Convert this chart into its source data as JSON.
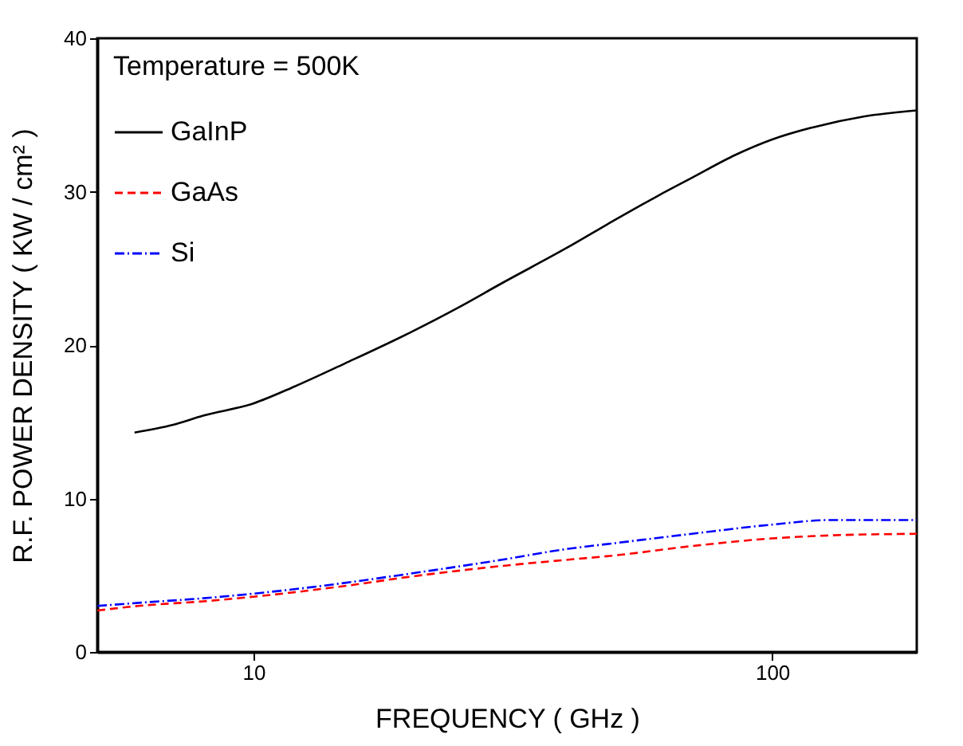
{
  "chart_data": {
    "type": "line",
    "xlabel": "FREQUENCY ( GHz )",
    "ylabel": "R.F.  POWER DENSITY ( KW / cm² )",
    "log": "x",
    "xlim": [
      5,
      190
    ],
    "xticks": [
      10,
      100
    ],
    "ylim": [
      0,
      40
    ],
    "yticks": [
      0,
      10,
      20,
      30,
      40
    ],
    "legend": "top left",
    "legend_title": "Temperature = 500K",
    "series": [
      {
        "name": "GaInP",
        "color": "#000000",
        "line_style": "solid",
        "x": [
          5.9,
          7,
          8,
          10,
          12,
          15,
          20,
          25,
          30,
          40,
          50,
          60,
          70,
          85,
          100,
          120,
          150,
          190
        ],
        "values": [
          14.3,
          14.8,
          15.4,
          16.2,
          17.3,
          18.8,
          20.8,
          22.5,
          24,
          26.3,
          28.2,
          29.7,
          30.9,
          32.4,
          33.4,
          34.2,
          34.9,
          35.3
        ]
      },
      {
        "name": "GaAs",
        "color": "#ff0000",
        "line_style": "dashed",
        "x": [
          5,
          6,
          8,
          10,
          15,
          20,
          30,
          40,
          50,
          70,
          100,
          130,
          190
        ],
        "values": [
          2.7,
          3,
          3.3,
          3.6,
          4.3,
          4.9,
          5.6,
          6,
          6.3,
          6.9,
          7.4,
          7.6,
          7.7
        ]
      },
      {
        "name": "Si",
        "color": "#0000ff",
        "line_style": "dashdot",
        "x": [
          5,
          6,
          8,
          10,
          15,
          20,
          30,
          40,
          50,
          70,
          100,
          130,
          190
        ],
        "values": [
          3,
          3.2,
          3.5,
          3.8,
          4.5,
          5.1,
          6,
          6.7,
          7.1,
          7.7,
          8.3,
          8.6,
          8.6
        ]
      }
    ]
  }
}
